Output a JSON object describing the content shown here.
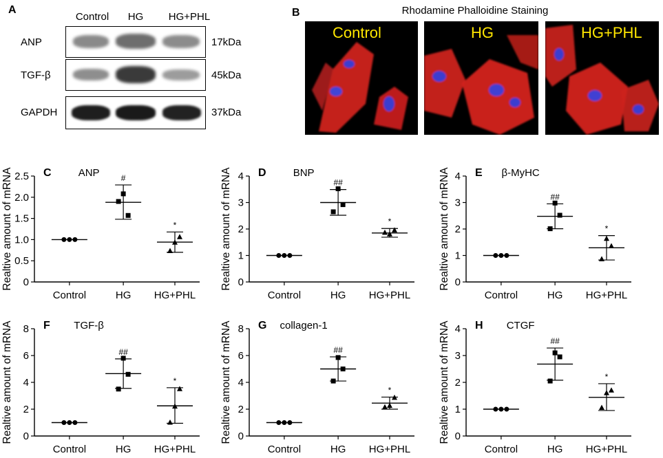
{
  "panel_a": {
    "label": "A",
    "columns": [
      "Control",
      "HG",
      "HG+PHL"
    ],
    "rows": [
      {
        "protein": "ANP",
        "kda": "17kDa"
      },
      {
        "protein": "TGF-β",
        "kda": "45kDa"
      },
      {
        "protein": "GAPDH",
        "kda": "37kDa"
      }
    ]
  },
  "panel_b": {
    "label": "B",
    "title": "Rhodamine Phalloidine Staining",
    "images": [
      "Control",
      "HG",
      "HG+PHL"
    ]
  },
  "colors": {
    "label_yellow": "#ffe600",
    "actin_red": "#e0211e",
    "nucleus_blue": "#3a3ccf",
    "marker": "#000000"
  },
  "chart_data": [
    {
      "type": "scatter",
      "panel": "C",
      "title": "ANP",
      "ylabel": "Realtive amount of mRNA",
      "categories": [
        "Control",
        "HG",
        "HG+PHL"
      ],
      "ylim": [
        0,
        2.5
      ],
      "yticks": [
        "0",
        "0.5",
        "1.0",
        "1.5",
        "2.0",
        "2.5"
      ],
      "ytick_values": [
        0,
        0.5,
        1.0,
        1.5,
        2.0,
        2.5
      ],
      "markers": [
        "circle",
        "square",
        "triangle"
      ],
      "points": [
        [
          1.0,
          1.0,
          1.0
        ],
        [
          1.9,
          2.08,
          1.57
        ],
        [
          0.73,
          0.93,
          1.06
        ]
      ],
      "mean": [
        1.0,
        1.88,
        0.94
      ],
      "sd_low": [
        1.0,
        1.48,
        0.7
      ],
      "sd_high": [
        1.0,
        2.29,
        1.18
      ],
      "annotations": [
        "",
        "#",
        "*"
      ]
    },
    {
      "type": "scatter",
      "panel": "D",
      "title": "BNP",
      "ylabel": "Realtive amount of mRNA",
      "categories": [
        "Control",
        "HG",
        "HG+PHL"
      ],
      "ylim": [
        0,
        4
      ],
      "yticks": [
        "0",
        "1",
        "2",
        "3",
        "4"
      ],
      "ytick_values": [
        0,
        1,
        2,
        3,
        4
      ],
      "markers": [
        "circle",
        "square",
        "triangle"
      ],
      "points": [
        [
          1.0,
          1.0,
          1.0
        ],
        [
          2.65,
          3.52,
          2.92
        ],
        [
          1.86,
          1.8,
          1.95
        ]
      ],
      "mean": [
        1.0,
        3.0,
        1.85
      ],
      "sd_low": [
        1.0,
        2.52,
        1.69
      ],
      "sd_high": [
        1.0,
        3.49,
        2.02
      ],
      "annotations": [
        "",
        "##",
        "*"
      ]
    },
    {
      "type": "scatter",
      "panel": "E",
      "title": "β-MyHC",
      "ylabel": "Realtive amount of mRNA",
      "categories": [
        "Control",
        "HG",
        "HG+PHL"
      ],
      "ylim": [
        0,
        4
      ],
      "yticks": [
        "0",
        "1",
        "2",
        "3",
        "4"
      ],
      "ytick_values": [
        0,
        1,
        2,
        3,
        4
      ],
      "markers": [
        "circle",
        "square",
        "triangle"
      ],
      "points": [
        [
          1.0,
          1.0,
          1.0
        ],
        [
          2.01,
          2.98,
          2.52
        ],
        [
          0.86,
          1.63,
          1.35
        ]
      ],
      "mean": [
        1.0,
        2.48,
        1.29
      ],
      "sd_low": [
        1.0,
        2.01,
        0.83
      ],
      "sd_high": [
        1.0,
        2.95,
        1.75
      ],
      "annotations": [
        "",
        "##",
        "*"
      ]
    },
    {
      "type": "scatter",
      "panel": "F",
      "title": "TGF-β",
      "ylabel": "Realtive amount of mRNA",
      "categories": [
        "Control",
        "HG",
        "HG+PHL"
      ],
      "ylim": [
        0,
        8
      ],
      "yticks": [
        "0",
        "2",
        "4",
        "6",
        "8"
      ],
      "ytick_values": [
        0,
        2,
        4,
        6,
        8
      ],
      "markers": [
        "circle",
        "square",
        "triangle"
      ],
      "points": [
        [
          1.0,
          1.0,
          1.0
        ],
        [
          3.5,
          5.8,
          4.6
        ],
        [
          1.0,
          2.2,
          3.5
        ]
      ],
      "mean": [
        1.0,
        4.65,
        2.25
      ],
      "sd_low": [
        1.0,
        3.55,
        0.95
      ],
      "sd_high": [
        1.0,
        5.75,
        3.6
      ],
      "annotations": [
        "",
        "##",
        "*"
      ]
    },
    {
      "type": "scatter",
      "panel": "G",
      "title": "collagen-1",
      "ylabel": "Realtive amount of mRNA",
      "categories": [
        "Control",
        "HG",
        "HG+PHL"
      ],
      "ylim": [
        0,
        8
      ],
      "yticks": [
        "0",
        "2",
        "4",
        "6",
        "8"
      ],
      "ytick_values": [
        0,
        2,
        4,
        6,
        8
      ],
      "markers": [
        "circle",
        "square",
        "triangle"
      ],
      "points": [
        [
          1.0,
          1.0,
          1.0
        ],
        [
          4.1,
          5.85,
          5.0
        ],
        [
          2.15,
          2.25,
          2.85
        ]
      ],
      "mean": [
        1.0,
        5.0,
        2.45
      ],
      "sd_low": [
        1.0,
        4.1,
        2.0
      ],
      "sd_high": [
        1.0,
        5.9,
        2.9
      ],
      "annotations": [
        "",
        "##",
        "*"
      ]
    },
    {
      "type": "scatter",
      "panel": "H",
      "title": "CTGF",
      "ylabel": "Realtive amount of mRNA",
      "categories": [
        "Control",
        "HG",
        "HG+PHL"
      ],
      "ylim": [
        0,
        4
      ],
      "yticks": [
        "0",
        "1",
        "2",
        "3",
        "4"
      ],
      "ytick_values": [
        0,
        1,
        2,
        3,
        4
      ],
      "markers": [
        "circle",
        "square",
        "triangle"
      ],
      "points": [
        [
          1.0,
          1.0,
          1.0
        ],
        [
          2.05,
          3.1,
          2.95
        ],
        [
          1.05,
          1.6,
          1.7
        ]
      ],
      "mean": [
        1.0,
        2.68,
        1.44
      ],
      "sd_low": [
        1.0,
        2.08,
        0.95
      ],
      "sd_high": [
        1.0,
        3.28,
        1.95
      ],
      "annotations": [
        "",
        "##",
        "*"
      ]
    }
  ]
}
